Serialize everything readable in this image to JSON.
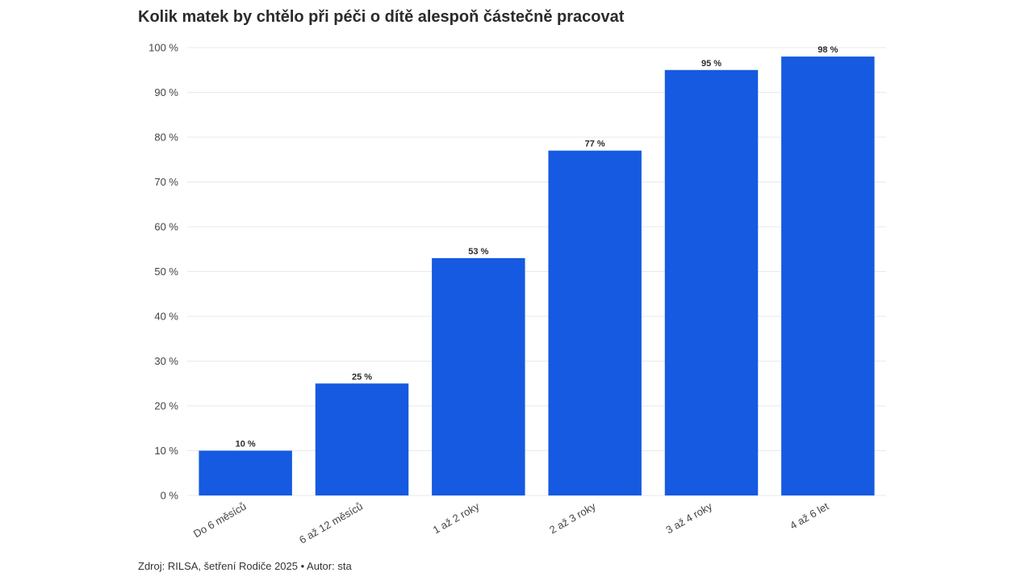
{
  "chart_data": {
    "type": "bar",
    "title": "Kolik matek by chtělo při péči o dítě alespoň částečně pracovat",
    "categories": [
      "Do 6 měsíců",
      "6 až 12 měsíců",
      "1 až 2 roky",
      "2 až 3 roky",
      "3 až 4 roky",
      "4 až 6 let"
    ],
    "values": [
      10,
      25,
      53,
      77,
      95,
      98
    ],
    "data_labels": [
      "10 %",
      "25 %",
      "53 %",
      "77 %",
      "95 %",
      "98 %"
    ],
    "ylim": [
      0,
      100
    ],
    "yticks": [
      0,
      10,
      20,
      30,
      40,
      50,
      60,
      70,
      80,
      90,
      100
    ],
    "ytick_labels": [
      "0 %",
      "10 %",
      "20 %",
      "30 %",
      "40 %",
      "50 %",
      "60 %",
      "70 %",
      "80 %",
      "90 %",
      "100 %"
    ],
    "xlabel": "",
    "ylabel": "",
    "grid": true,
    "bar_color": "#155ae0",
    "source": "Zdroj: RILSA, šetření Rodiče 2025 • Autor: sta"
  }
}
